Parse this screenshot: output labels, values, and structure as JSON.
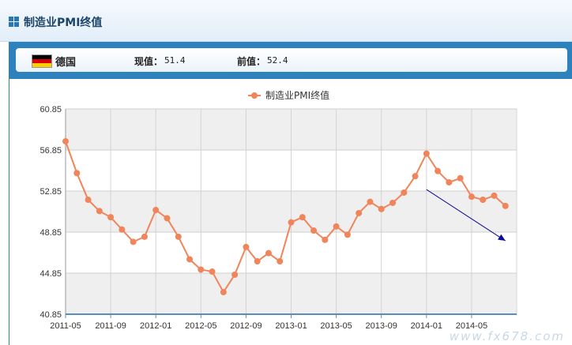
{
  "header": {
    "title": "制造业PMI终值",
    "icon": "grid-icon"
  },
  "info": {
    "country": "德国",
    "current_label": "现值：",
    "current_value": "51.4",
    "previous_label": "前值：",
    "previous_value": "52.4",
    "flag_colors": [
      "#000000",
      "#dd0000",
      "#ffce00"
    ]
  },
  "watermark": "www.fx678.com",
  "chart_data": {
    "type": "line",
    "title": "",
    "legend": {
      "entries": [
        "制造业PMI终值"
      ],
      "placement": "top-center"
    },
    "x": [
      "2011-05",
      "2011-06",
      "2011-07",
      "2011-08",
      "2011-09",
      "2011-10",
      "2011-11",
      "2011-12",
      "2012-01",
      "2012-02",
      "2012-03",
      "2012-04",
      "2012-05",
      "2012-06",
      "2012-07",
      "2012-08",
      "2012-09",
      "2012-10",
      "2012-11",
      "2012-12",
      "2013-01",
      "2013-02",
      "2013-03",
      "2013-04",
      "2013-05",
      "2013-06",
      "2013-07",
      "2013-08",
      "2013-09",
      "2013-10",
      "2013-11",
      "2013-12",
      "2014-01",
      "2014-02",
      "2014-03",
      "2014-04",
      "2014-05",
      "2014-06",
      "2014-07",
      "2014-08"
    ],
    "x_tick_labels": [
      "2011-05",
      "2011-09",
      "2012-01",
      "2012-05",
      "2012-09",
      "2013-01",
      "2013-05",
      "2013-09",
      "2014-01",
      "2014-05"
    ],
    "series": [
      {
        "name": "制造业PMI终值",
        "color": "#f0845a",
        "values": [
          57.7,
          54.6,
          52.0,
          50.9,
          50.3,
          49.1,
          47.9,
          48.4,
          51.0,
          50.2,
          48.4,
          46.2,
          45.2,
          45.0,
          43.0,
          44.7,
          47.4,
          46.0,
          46.8,
          46.0,
          49.8,
          50.3,
          49.0,
          48.1,
          49.4,
          48.6,
          50.7,
          51.8,
          51.1,
          51.7,
          52.7,
          54.3,
          56.5,
          54.8,
          53.7,
          54.1,
          52.3,
          52.0,
          52.4,
          51.4
        ]
      }
    ],
    "ylim": [
      40.85,
      60.85
    ],
    "y_ticks": [
      40.85,
      44.85,
      48.85,
      52.85,
      56.85,
      60.85
    ],
    "y_tick_labels": [
      "40.85",
      "44.85",
      "48.85",
      "52.85",
      "56.85",
      "60.85"
    ],
    "grid": true,
    "annotation": {
      "type": "trend-arrow",
      "color": "#0a0a9a",
      "from": {
        "x": "2014-01",
        "y": 53.0
      },
      "to": {
        "x": "2014-08",
        "y": 48.0
      }
    }
  }
}
